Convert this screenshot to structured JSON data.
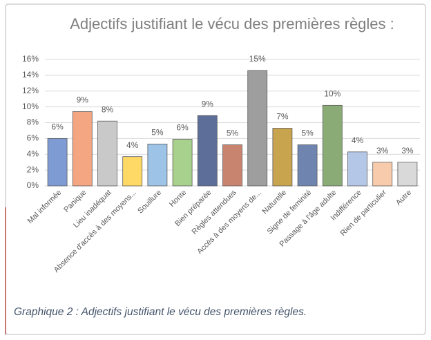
{
  "chart_data": {
    "type": "bar",
    "title": "Adjectifs justifiant le vécu des premières règles :",
    "caption": "Graphique 2 : Adjectifs justifiant le vécu des premières règles.",
    "categories": [
      "Mal informée",
      "Panique",
      "Lieu inadéquat",
      "Absence d'accès à des moyens...",
      "Souillure",
      "Honte",
      "Bien préparée",
      "Règles attendues",
      "Accès à des moyens de...",
      "Naturelle",
      "Signe de feminité",
      "Passage à l'âge adulte",
      "Indifférence",
      "Rien de particulier",
      "Autre"
    ],
    "values": [
      6.0,
      9.4,
      8.2,
      3.7,
      5.3,
      5.9,
      8.9,
      5.2,
      14.6,
      7.3,
      5.2,
      10.2,
      4.3,
      3.0,
      3.0
    ],
    "value_labels": [
      "6%",
      "9%",
      "8%",
      "4%",
      "5%",
      "6%",
      "9%",
      "5%",
      "15%",
      "7%",
      "5%",
      "10%",
      "4%",
      "3%",
      "3%"
    ],
    "colors": [
      "#7f9bd4",
      "#f4a582",
      "#c9c9c9",
      "#ffd966",
      "#9dc3e6",
      "#a9d18e",
      "#5d6e99",
      "#c9846f",
      "#9e9e9e",
      "#c9a44f",
      "#6f85b0",
      "#8aab76",
      "#b4c7e7",
      "#f8cbad",
      "#d9d9d9"
    ],
    "ylim": [
      0,
      16
    ],
    "yticks": [
      {
        "value": 0,
        "label": "0%"
      },
      {
        "value": 2,
        "label": "2%"
      },
      {
        "value": 4,
        "label": "4%"
      },
      {
        "value": 6,
        "label": "6%"
      },
      {
        "value": 8,
        "label": "8%"
      },
      {
        "value": 10,
        "label": "10%"
      },
      {
        "value": 12,
        "label": "12%"
      },
      {
        "value": 14,
        "label": "14%"
      },
      {
        "value": 16,
        "label": "16%"
      }
    ],
    "grid": true
  }
}
